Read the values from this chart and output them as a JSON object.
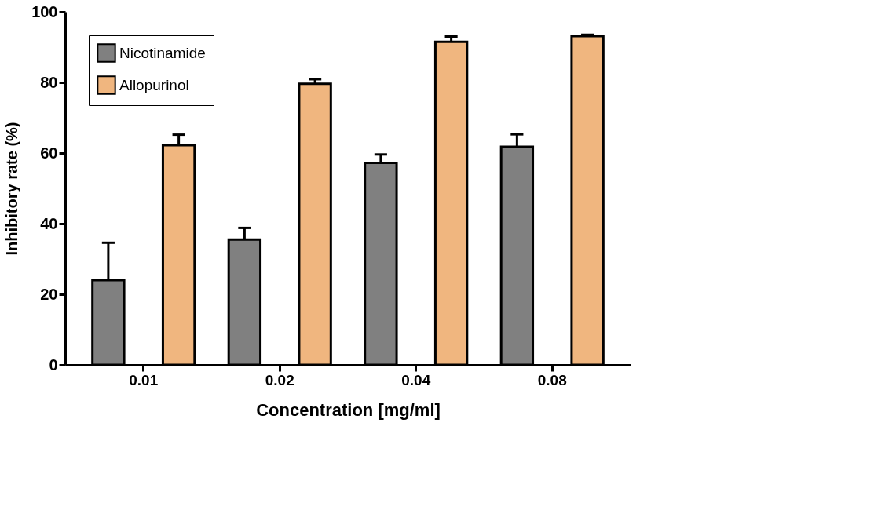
{
  "chart_data": {
    "type": "bar",
    "xlabel": "Concentration [mg/ml]",
    "ylabel": "Inhibitory rate (%)",
    "categories": [
      "0.01",
      "0.02",
      "0.04",
      "0.08"
    ],
    "series": [
      {
        "name": "Nicotinamide",
        "color": "#808080",
        "values": [
          24.0,
          35.5,
          57.2,
          61.8
        ],
        "errors": [
          10.6,
          3.3,
          2.4,
          3.5
        ]
      },
      {
        "name": "Allopurinol",
        "color": "#f0b67f",
        "values": [
          62.2,
          79.6,
          91.5,
          93.1
        ],
        "errors": [
          3.0,
          1.3,
          1.5,
          0.4
        ]
      }
    ],
    "ylim": [
      0,
      100
    ],
    "yticks": [
      0,
      20,
      40,
      60,
      80,
      100
    ],
    "grid": false,
    "legend": "top left"
  }
}
